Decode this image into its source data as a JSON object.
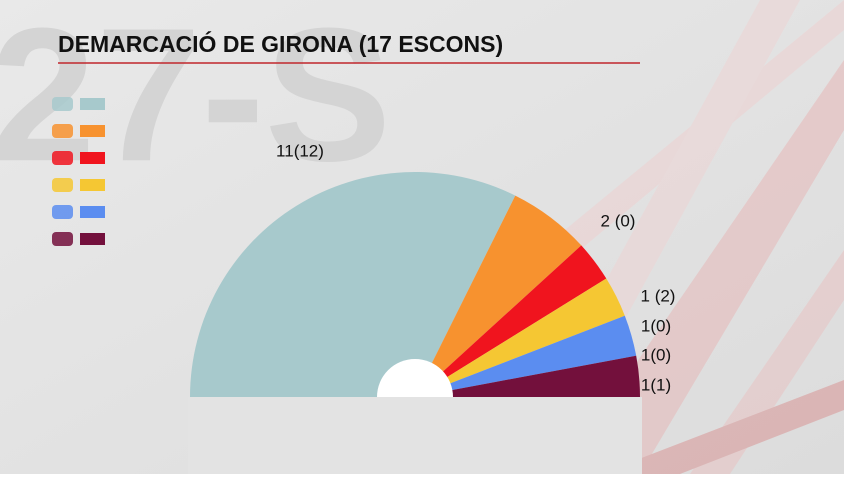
{
  "chart_data": {
    "type": "semicircle",
    "title": "DEMARCACIÓ DE GIRONA (17 ESCONS)",
    "categories": [
      null,
      null,
      null,
      null,
      null,
      null
    ],
    "values": [
      11,
      2,
      1,
      1,
      1,
      1
    ],
    "value_labels": [
      "11(12)",
      "2 (0)",
      "1 (2)",
      "1(0)",
      "1(0)",
      "1(1)"
    ],
    "colors": [
      "#a7c9cc",
      "#f7922f",
      "#f0141e",
      "#f5c733",
      "#5b8df0",
      "#73103c"
    ]
  }
}
